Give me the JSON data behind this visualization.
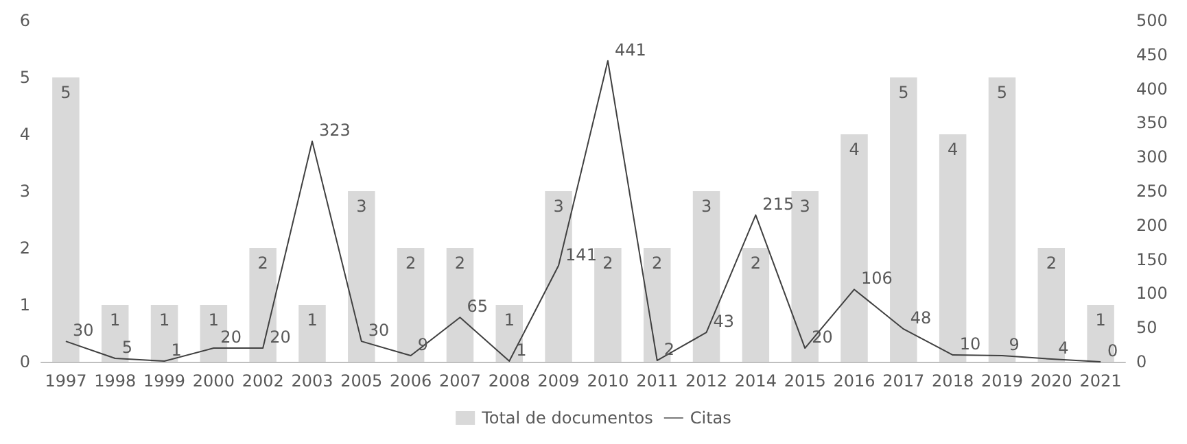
{
  "chart_data": {
    "type": "bar",
    "categories": [
      "1997",
      "1998",
      "1999",
      "2000",
      "2002",
      "2003",
      "2005",
      "2006",
      "2007",
      "2008",
      "2009",
      "2010",
      "2011",
      "2012",
      "2014",
      "2015",
      "2016",
      "2017",
      "2018",
      "2019",
      "2020",
      "2021"
    ],
    "series": [
      {
        "name": "Total de documentos",
        "color": "#d9d9d9",
        "values": [
          5,
          1,
          1,
          1,
          2,
          1,
          3,
          2,
          2,
          1,
          3,
          2,
          2,
          3,
          2,
          3,
          4,
          5,
          4,
          5,
          2,
          1
        ]
      },
      {
        "name": "Citas",
        "type": "line",
        "axis": "y2",
        "color": "#404040",
        "values": [
          30,
          5,
          1,
          20,
          20,
          323,
          30,
          9,
          65,
          1,
          141,
          441,
          2,
          43,
          215,
          20,
          106,
          48,
          10,
          9,
          4,
          0
        ]
      }
    ],
    "ylim": [
      0,
      6
    ],
    "yticks": [
      0,
      1,
      2,
      3,
      4,
      5,
      6
    ],
    "y2lim": [
      0,
      500
    ],
    "y2ticks": [
      0,
      50,
      100,
      150,
      200,
      250,
      300,
      350,
      400,
      450,
      500
    ],
    "data_labels": true,
    "legend": "bottom",
    "grid": false,
    "marker": "none",
    "line_style": "solid"
  }
}
